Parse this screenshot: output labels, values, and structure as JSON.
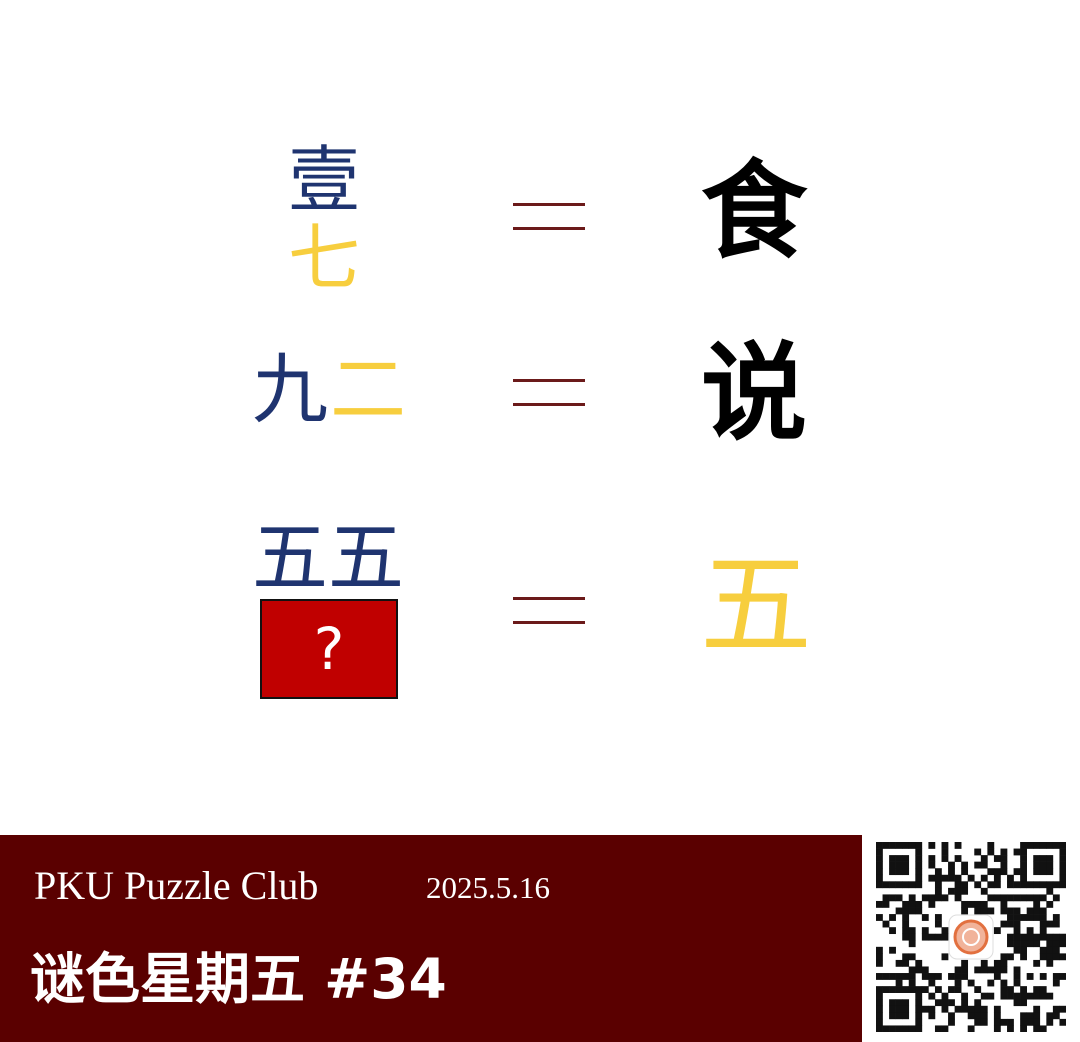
{
  "puzzle": {
    "rows": [
      {
        "left": [
          "壹",
          "七"
        ],
        "equals": "=",
        "right": "食"
      },
      {
        "left": [
          "九",
          "二"
        ],
        "equals": "=",
        "right": "说"
      },
      {
        "left": [
          "五五"
        ],
        "hidden": "?",
        "equals": "=",
        "right": "五"
      }
    ]
  },
  "footer": {
    "club": "PKU Puzzle Club",
    "date": "2025.5.16",
    "series": "谜色星期五 #34"
  },
  "colors": {
    "blue": "#1f3470",
    "yellow": "#f7ce3e",
    "equals": "#6b1a1a",
    "question_box": "#c00000",
    "footer": "#5a0000"
  },
  "icons": {
    "qr": "qr-code-icon",
    "logo": "club-logo-icon"
  }
}
